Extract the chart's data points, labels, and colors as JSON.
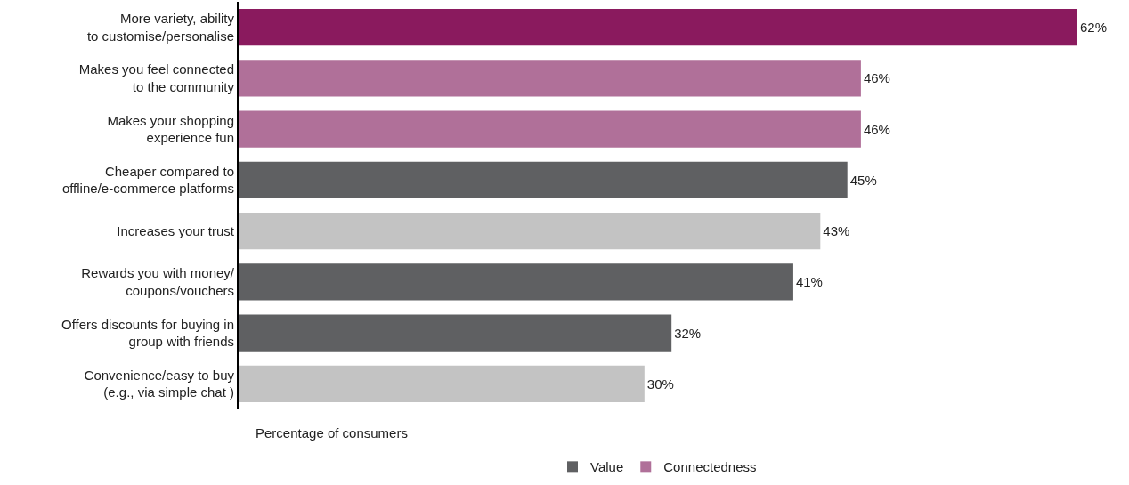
{
  "chart_data": {
    "type": "bar",
    "orientation": "horizontal",
    "xlabel": "Percentage of consumers",
    "categories": [
      "More variety, ability\nto customise/personalise",
      "Makes you feel connected\nto the community",
      "Makes your shopping\nexperience fun",
      "Cheaper compared to\noffline/e-commerce platforms",
      "Increases your trust",
      "Rewards you with money/\ncoupons/vouchers",
      "Offers discounts for buying in\ngroup with friends",
      "Convenience/easy to buy\n(e.g., via simple chat )"
    ],
    "series": [
      {
        "name": "Value",
        "color": "#5f6062",
        "values": [
          null,
          null,
          null,
          45,
          null,
          41,
          32,
          null
        ],
        "value_labels": [
          null,
          null,
          null,
          "45%",
          null,
          "41%",
          "32%",
          null
        ]
      },
      {
        "name": "Connectedness",
        "color": "#b07099",
        "values": [
          null,
          46,
          46,
          null,
          null,
          null,
          null,
          null
        ],
        "value_labels": [
          null,
          "46%",
          "46%",
          null,
          null,
          null,
          null,
          null
        ]
      },
      {
        "color": "#8a1a5e",
        "values": [
          62,
          null,
          null,
          null,
          null,
          null,
          null,
          null
        ],
        "value_labels": [
          "62%",
          null,
          null,
          null,
          null,
          null,
          null,
          null
        ]
      },
      {
        "color": "#c3c3c3",
        "values": [
          null,
          null,
          null,
          null,
          43,
          null,
          null,
          30
        ],
        "value_labels": [
          null,
          null,
          null,
          null,
          "43%",
          null,
          null,
          "30%"
        ]
      }
    ],
    "xlim": [
      0,
      62
    ],
    "tick_labels": "y",
    "legend": "bottom"
  }
}
